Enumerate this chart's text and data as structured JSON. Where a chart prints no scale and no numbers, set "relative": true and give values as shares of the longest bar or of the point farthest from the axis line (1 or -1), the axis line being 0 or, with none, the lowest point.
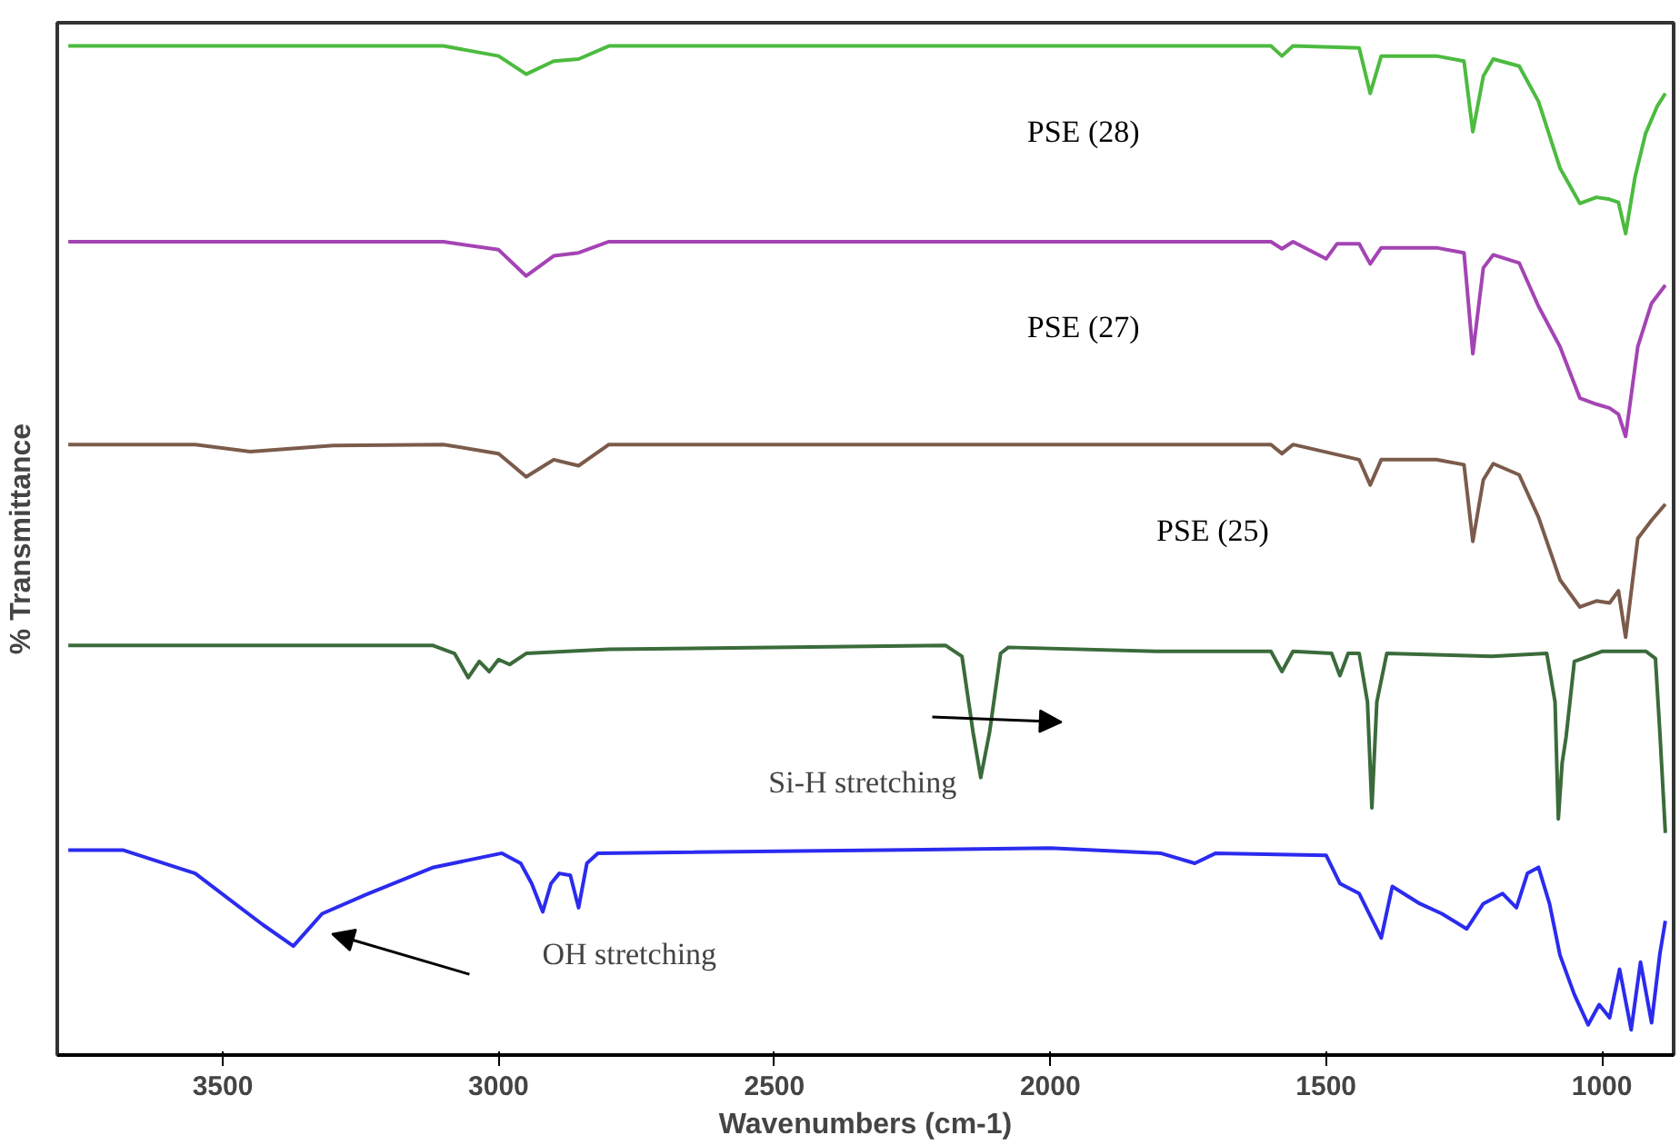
{
  "chart_data": {
    "type": "line",
    "relative": true,
    "xlabel": "Wavenumbers (cm-1)",
    "ylabel": "% Transmittance",
    "xlim": [
      3800,
      870
    ],
    "xticks": [
      3500,
      3000,
      2500,
      2000,
      1500,
      1000
    ],
    "tick_labels": "x",
    "grid": false,
    "legend": false,
    "marker": "none",
    "line_style": "solid",
    "series": [
      {
        "name": "PSE (28)",
        "color": "#4cbb3f",
        "x": [
          3780,
          3100,
          3000,
          2950,
          2900,
          2855,
          2800,
          2000,
          1600,
          1580,
          1560,
          1440,
          1420,
          1400,
          1300,
          1250,
          1234,
          1215,
          1197,
          1150,
          1115,
          1076,
          1040,
          1010,
          986,
          970,
          957,
          940,
          921,
          900,
          885
        ],
        "values": [
          1.0,
          1.0,
          0.99,
          0.972,
          0.985,
          0.987,
          1.0,
          1.0,
          1.0,
          0.99,
          1.0,
          0.998,
          0.953,
          0.99,
          0.99,
          0.985,
          0.915,
          0.97,
          0.987,
          0.98,
          0.945,
          0.879,
          0.844,
          0.85,
          0.848,
          0.845,
          0.814,
          0.87,
          0.913,
          0.94,
          0.953
        ]
      },
      {
        "name": "PSE (27)",
        "color": "#a444b4",
        "x": [
          3780,
          3100,
          3000,
          2950,
          2900,
          2855,
          2800,
          2000,
          1600,
          1580,
          1560,
          1500,
          1480,
          1440,
          1420,
          1400,
          1300,
          1250,
          1234,
          1215,
          1197,
          1150,
          1115,
          1076,
          1040,
          1010,
          986,
          970,
          957,
          935,
          910,
          885
        ],
        "values": [
          0.806,
          0.806,
          0.798,
          0.772,
          0.792,
          0.795,
          0.806,
          0.806,
          0.806,
          0.799,
          0.806,
          0.789,
          0.804,
          0.804,
          0.784,
          0.8,
          0.8,
          0.795,
          0.695,
          0.78,
          0.793,
          0.785,
          0.742,
          0.702,
          0.651,
          0.645,
          0.641,
          0.635,
          0.613,
          0.702,
          0.745,
          0.763
        ]
      },
      {
        "name": "PSE (25)",
        "color": "#7b5b4b",
        "x": [
          3780,
          3550,
          3450,
          3300,
          3100,
          3000,
          2950,
          2900,
          2855,
          2800,
          2000,
          1600,
          1580,
          1560,
          1440,
          1420,
          1400,
          1300,
          1250,
          1234,
          1215,
          1197,
          1150,
          1115,
          1076,
          1040,
          1010,
          986,
          970,
          957,
          935,
          910,
          885
        ],
        "values": [
          0.605,
          0.605,
          0.598,
          0.604,
          0.605,
          0.596,
          0.573,
          0.59,
          0.584,
          0.605,
          0.605,
          0.605,
          0.596,
          0.605,
          0.59,
          0.565,
          0.59,
          0.59,
          0.585,
          0.509,
          0.57,
          0.586,
          0.575,
          0.533,
          0.471,
          0.444,
          0.45,
          0.448,
          0.46,
          0.414,
          0.512,
          0.53,
          0.546
        ]
      },
      {
        "color": "#3b6b3b",
        "x": [
          3780,
          3120,
          3080,
          3055,
          3035,
          3017,
          3000,
          2980,
          2950,
          2800,
          2190,
          2160,
          2140,
          2126,
          2110,
          2090,
          2076,
          1800,
          1600,
          1580,
          1560,
          1490,
          1475,
          1460,
          1440,
          1425,
          1417,
          1408,
          1390,
          1200,
          1100,
          1085,
          1079,
          1072,
          1065,
          1050,
          1000,
          920,
          903,
          895,
          885
        ],
        "values": [
          0.406,
          0.406,
          0.398,
          0.374,
          0.39,
          0.38,
          0.392,
          0.387,
          0.398,
          0.402,
          0.406,
          0.395,
          0.32,
          0.275,
          0.32,
          0.398,
          0.404,
          0.4,
          0.4,
          0.38,
          0.4,
          0.398,
          0.376,
          0.398,
          0.398,
          0.35,
          0.245,
          0.35,
          0.398,
          0.395,
          0.398,
          0.35,
          0.234,
          0.29,
          0.315,
          0.39,
          0.4,
          0.4,
          0.393,
          0.32,
          0.22
        ]
      },
      {
        "color": "#2b2bef",
        "x": [
          3780,
          3680,
          3550,
          3427,
          3372,
          3320,
          3240,
          3118,
          2994,
          2960,
          2940,
          2920,
          2905,
          2890,
          2870,
          2855,
          2840,
          2820,
          2000,
          1800,
          1738,
          1700,
          1500,
          1475,
          1440,
          1400,
          1380,
          1330,
          1290,
          1245,
          1215,
          1180,
          1155,
          1135,
          1115,
          1095,
          1076,
          1050,
          1025,
          1005,
          986,
          968,
          947,
          930,
          910,
          895,
          885
        ],
        "values": [
          0.203,
          0.203,
          0.18,
          0.129,
          0.108,
          0.14,
          0.159,
          0.186,
          0.2,
          0.19,
          0.17,
          0.142,
          0.17,
          0.18,
          0.178,
          0.146,
          0.19,
          0.2,
          0.205,
          0.2,
          0.19,
          0.2,
          0.198,
          0.17,
          0.16,
          0.116,
          0.167,
          0.15,
          0.14,
          0.125,
          0.15,
          0.16,
          0.146,
          0.18,
          0.186,
          0.15,
          0.099,
          0.06,
          0.03,
          0.05,
          0.037,
          0.085,
          0.025,
          0.092,
          0.032,
          0.1,
          0.133
        ]
      }
    ],
    "annotations": [
      {
        "text": "Si-H stretching",
        "x": 2126,
        "y": 0.275
      },
      "OH stretching"
    ]
  }
}
